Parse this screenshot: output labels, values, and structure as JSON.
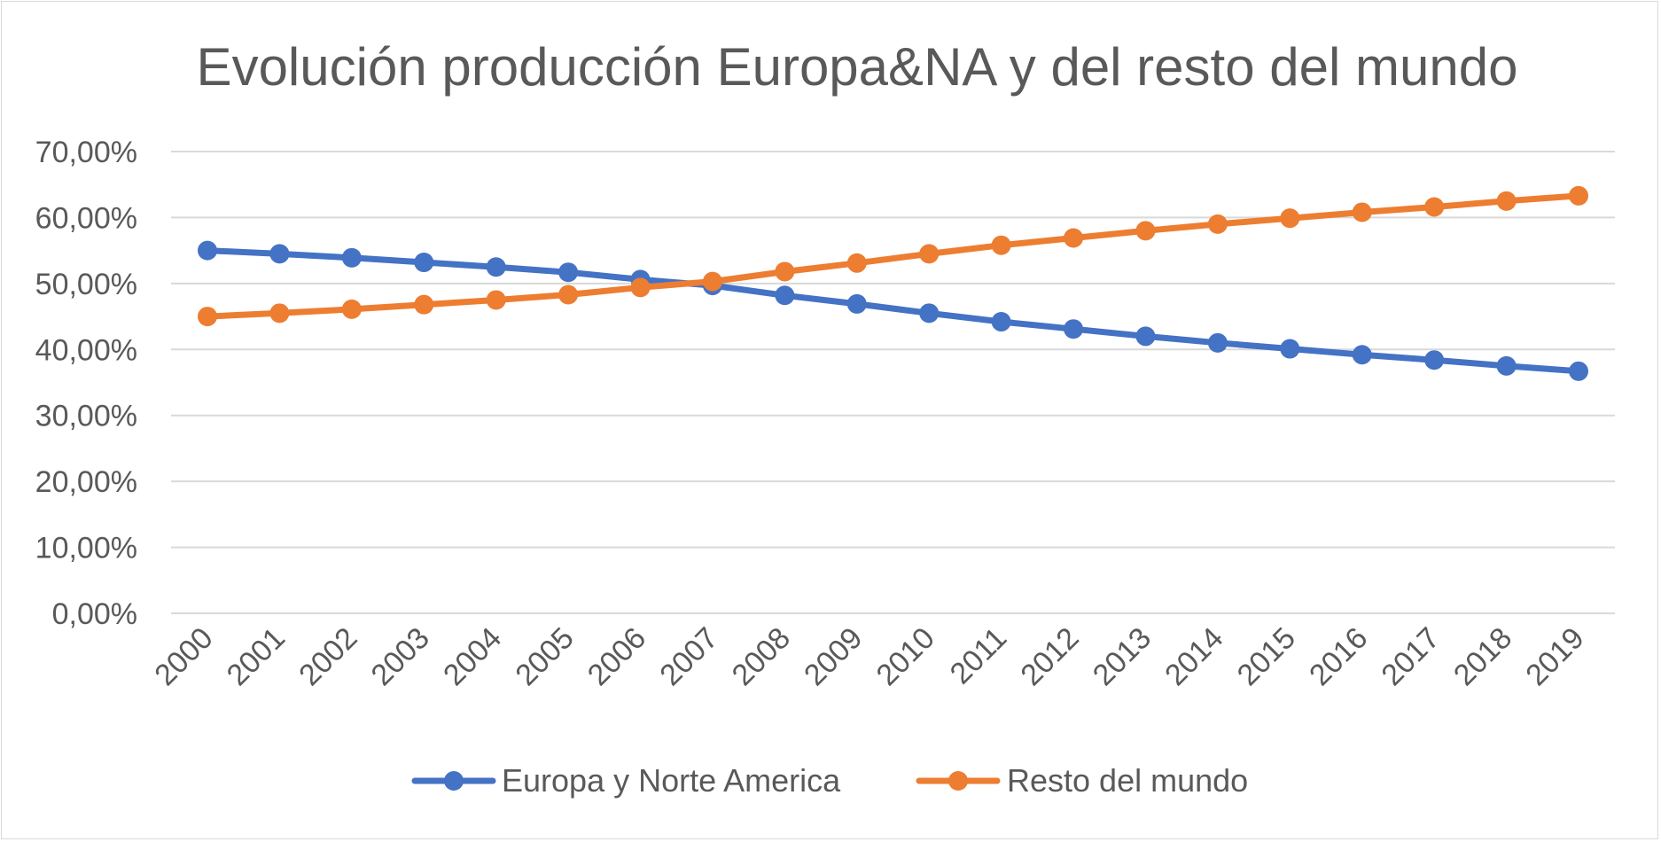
{
  "chart_data": {
    "type": "line",
    "title": "Evolución producción Europa&NA y del resto del mundo",
    "xlabel": "",
    "ylabel": "",
    "categories": [
      "2000",
      "2001",
      "2002",
      "2003",
      "2004",
      "2005",
      "2006",
      "2007",
      "2008",
      "2009",
      "2010",
      "2011",
      "2012",
      "2013",
      "2014",
      "2015",
      "2016",
      "2017",
      "2018",
      "2019"
    ],
    "y_ticks": [
      "0,00%",
      "10,00%",
      "20,00%",
      "30,00%",
      "40,00%",
      "50,00%",
      "60,00%",
      "70,00%"
    ],
    "ylim": [
      0,
      70
    ],
    "grid": true,
    "legend_position": "bottom",
    "series": [
      {
        "name": "Europa y Norte America",
        "color": "#4472C4",
        "values": [
          55.0,
          54.5,
          53.9,
          53.2,
          52.5,
          51.7,
          50.6,
          49.7,
          48.2,
          46.9,
          45.5,
          44.2,
          43.1,
          42.0,
          41.0,
          40.1,
          39.2,
          38.4,
          37.5,
          36.7
        ]
      },
      {
        "name": "Resto del mundo",
        "color": "#ED7D31",
        "values": [
          45.0,
          45.5,
          46.1,
          46.8,
          47.5,
          48.3,
          49.4,
          50.3,
          51.8,
          53.1,
          54.5,
          55.8,
          56.9,
          58.0,
          59.0,
          59.9,
          60.8,
          61.6,
          62.5,
          63.3
        ]
      }
    ]
  }
}
